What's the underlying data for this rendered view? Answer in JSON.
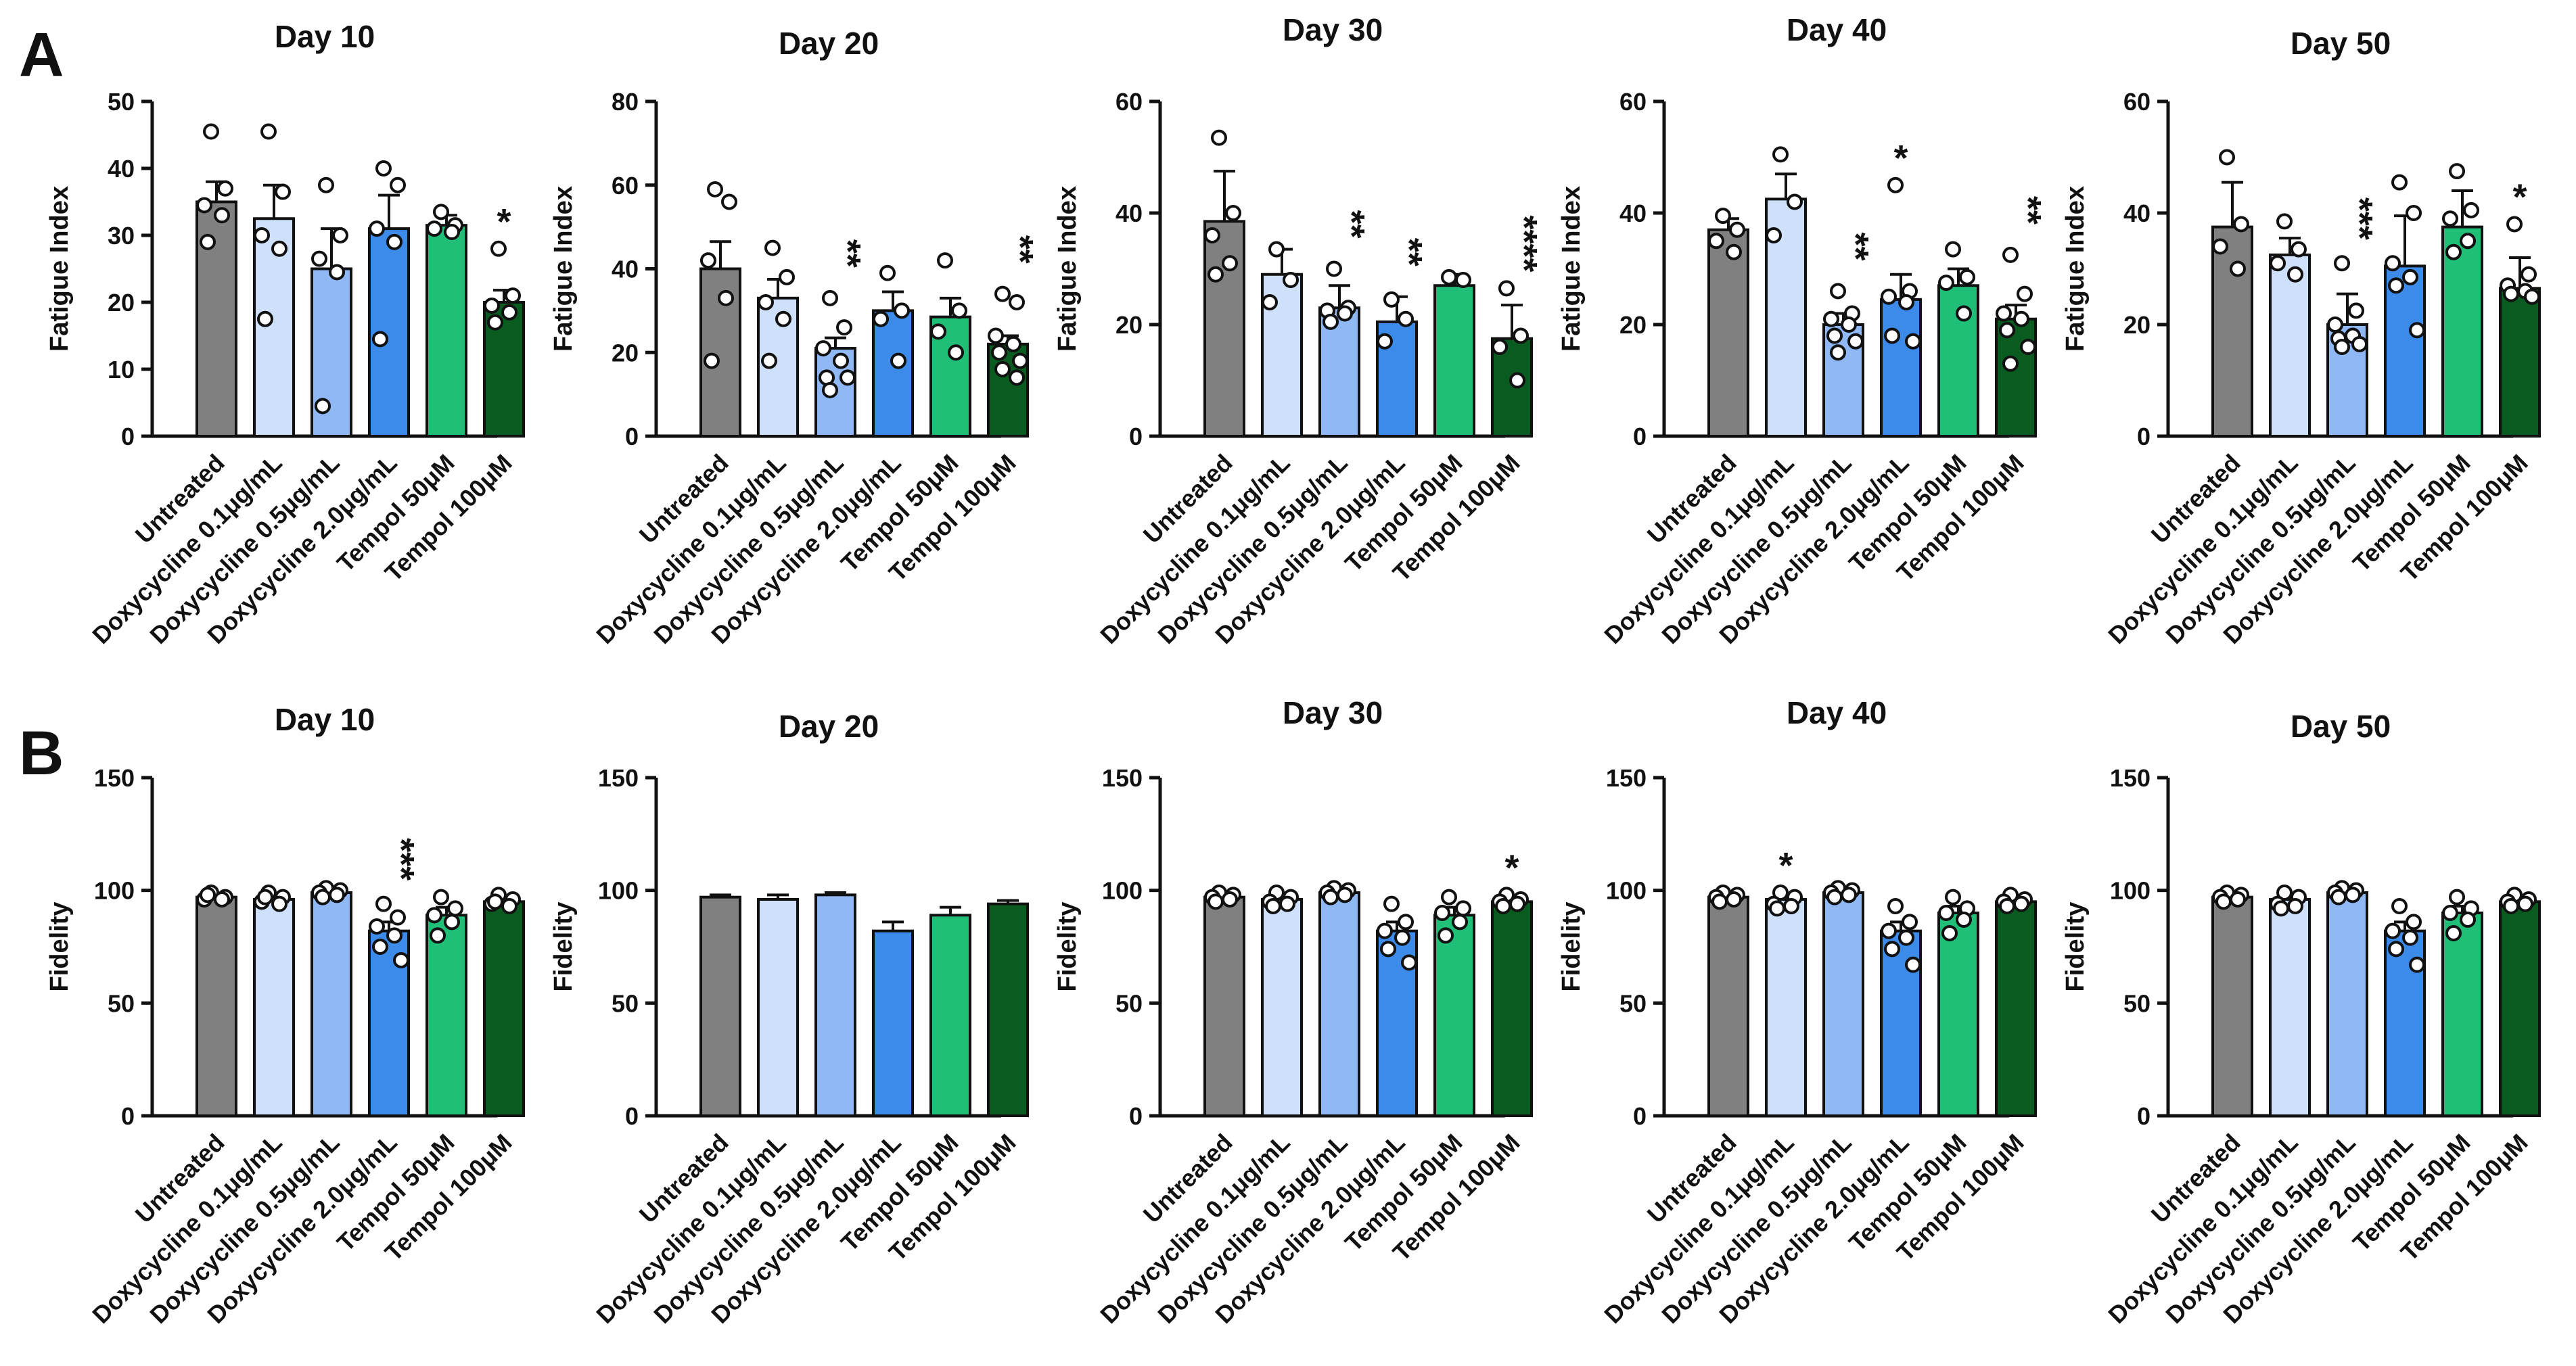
{
  "panels": [
    {
      "label": "A",
      "charts": [
        {
          "title": "Day 10",
          "ylabel": "Fatigue Index",
          "yticks": [
            "0",
            "10",
            "20",
            "30",
            "40",
            "50"
          ],
          "ylim": [
            0,
            50
          ],
          "values": [
            35,
            32.5,
            25,
            31,
            31.5,
            20
          ],
          "errors": [
            3,
            5,
            6,
            5,
            1.5,
            1.8
          ],
          "points": [
            [
              45.5,
              37,
              34.5,
              33,
              29
            ],
            [
              45.5,
              36.5,
              30,
              28,
              17.5
            ],
            [
              37.5,
              30,
              26.5,
              24.5,
              4.5
            ],
            [
              40,
              37.5,
              31,
              29,
              14.5
            ],
            [
              33.5,
              31.5,
              31,
              30.5
            ],
            [
              28,
              21,
              19.5,
              18.5,
              17
            ]
          ],
          "sig": [
            "",
            "",
            "",
            "",
            "",
            "*"
          ]
        },
        {
          "title": "Day 20",
          "ylabel": "Fatigue Index",
          "yticks": [
            "0",
            "20",
            "40",
            "60",
            "80"
          ],
          "ylim": [
            0,
            80
          ],
          "values": [
            40,
            33,
            21,
            30,
            28.5,
            22
          ],
          "errors": [
            6.5,
            4.5,
            2.5,
            4.5,
            4.5,
            2
          ],
          "points": [
            [
              59,
              56,
              42,
              33,
              18
            ],
            [
              45,
              38,
              32,
              28,
              18
            ],
            [
              33,
              26,
              21,
              18,
              14,
              14,
              11
            ],
            [
              39,
              30,
              28,
              18
            ],
            [
              42,
              30,
              25,
              20
            ],
            [
              34,
              32,
              24,
              22,
              20,
              18,
              16,
              14
            ]
          ],
          "sig": [
            "",
            "",
            "**",
            "",
            "",
            "**"
          ]
        },
        {
          "title": "Day 30",
          "ylabel": "Fatigue Index",
          "yticks": [
            "0",
            "20",
            "40",
            "60"
          ],
          "ylim": [
            0,
            60
          ],
          "values": [
            38.5,
            29,
            23,
            20.5,
            27,
            17.5
          ],
          "errors": [
            9,
            4.5,
            4,
            4.5,
            2,
            6
          ],
          "points": [
            [
              53.5,
              40,
              36,
              31,
              29
            ],
            [
              33.5,
              28,
              24
            ],
            [
              30,
              23,
              22.5,
              22,
              20.5
            ],
            [
              24.5,
              21,
              17
            ],
            [
              28.5,
              28
            ],
            [
              26.5,
              18,
              16,
              10
            ]
          ],
          "sig": [
            "",
            "",
            "**",
            "**",
            "",
            "****"
          ]
        },
        {
          "title": "Day 40",
          "ylabel": "Fatigue Index",
          "yticks": [
            "0",
            "20",
            "40",
            "60"
          ],
          "ylim": [
            0,
            60
          ],
          "values": [
            37,
            42.5,
            20,
            24.5,
            27,
            21
          ],
          "errors": [
            2,
            4.5,
            2,
            4.5,
            3,
            2.5
          ],
          "points": [
            [
              39.5,
              37,
              35,
              33
            ],
            [
              50.5,
              42,
              36
            ],
            [
              26,
              22,
              21,
              20,
              18,
              17,
              15
            ],
            [
              45,
              26,
              25,
              24,
              18,
              17
            ],
            [
              33.5,
              28.5,
              27.5,
              22
            ],
            [
              32.5,
              25.5,
              22,
              21,
              19,
              16,
              13
            ]
          ],
          "sig": [
            "",
            "",
            "**",
            "*",
            "",
            "**"
          ]
        },
        {
          "title": "Day 50",
          "ylabel": "Fatigue Index",
          "yticks": [
            "0",
            "20",
            "40",
            "60"
          ],
          "ylim": [
            0,
            60
          ],
          "values": [
            37.5,
            32.5,
            20,
            30.5,
            37.5,
            26.5
          ],
          "errors": [
            8,
            3,
            5.5,
            9,
            6.5,
            5.5
          ],
          "points": [
            [
              50,
              38,
              34,
              30
            ],
            [
              38.5,
              33.5,
              31,
              29
            ],
            [
              31,
              22.5,
              20,
              18,
              17.5,
              16.5,
              16
            ],
            [
              45.5,
              40,
              31,
              28.5,
              27,
              19
            ],
            [
              47.5,
              40.5,
              39,
              35,
              33
            ],
            [
              38,
              29,
              27,
              26,
              25.5,
              25
            ]
          ],
          "sig": [
            "",
            "",
            "***",
            "",
            "",
            "*"
          ]
        }
      ]
    },
    {
      "label": "B",
      "charts": [
        {
          "title": "Day 10",
          "ylabel": "Fidelity",
          "yticks": [
            "0",
            "50",
            "100",
            "150"
          ],
          "ylim": [
            0,
            150
          ],
          "values": [
            97,
            96,
            99,
            82,
            89,
            95
          ],
          "errors": [
            1.5,
            2.5,
            1.5,
            4,
            3.5,
            1.5
          ],
          "points": [
            [
              99,
              97,
              96,
              96,
              98
            ],
            [
              99,
              97,
              95,
              94,
              97
            ],
            [
              101,
              100,
              99,
              98,
              97
            ],
            [
              94,
              88,
              84,
              80,
              75,
              69
            ],
            [
              97,
              92,
              89,
              86,
              80
            ],
            [
              98,
              96,
              94,
              93,
              95
            ]
          ],
          "sig": [
            "",
            "",
            "",
            "***",
            "",
            ""
          ]
        },
        {
          "title": "Day 20",
          "ylabel": "Fidelity",
          "yticks": [
            "0",
            "50",
            "100",
            "150"
          ],
          "ylim": [
            0,
            150
          ],
          "values": [
            97,
            96,
            98,
            82,
            89,
            94
          ],
          "errors": [
            1,
            2,
            1,
            4,
            3.5,
            1.5
          ],
          "points": [
            [],
            [],
            [],
            [],
            [],
            []
          ],
          "sig": [
            "",
            "",
            "",
            "",
            "",
            ""
          ]
        },
        {
          "title": "Day 30",
          "ylabel": "Fidelity",
          "yticks": [
            "0",
            "50",
            "100",
            "150"
          ],
          "ylim": [
            0,
            150
          ],
          "values": [
            97,
            96,
            99,
            82,
            89,
            95
          ],
          "errors": [
            1.5,
            2.5,
            1.5,
            4,
            3.5,
            1.5
          ],
          "points": [
            [
              99,
              98,
              97,
              96,
              95
            ],
            [
              99,
              97,
              95,
              94,
              93
            ],
            [
              101,
              100,
              99,
              98,
              97
            ],
            [
              94,
              86,
              82,
              79,
              74,
              68
            ],
            [
              97,
              92,
              90,
              86,
              80
            ],
            [
              98,
              96,
              95,
              94,
              93
            ]
          ],
          "sig": [
            "",
            "",
            "",
            "",
            "",
            "*"
          ]
        },
        {
          "title": "Day 40",
          "ylabel": "Fidelity",
          "yticks": [
            "0",
            "50",
            "100",
            "150"
          ],
          "ylim": [
            0,
            150
          ],
          "values": [
            97,
            96,
            99,
            82,
            90,
            95
          ],
          "errors": [
            1.5,
            2.5,
            1.5,
            4,
            3,
            1.5
          ],
          "points": [
            [
              99,
              98,
              97,
              96,
              95
            ],
            [
              99,
              97,
              94,
              93,
              92
            ],
            [
              101,
              100,
              99,
              98,
              97
            ],
            [
              93,
              86,
              82,
              79,
              74,
              67
            ],
            [
              97,
              92,
              90,
              87,
              81
            ],
            [
              98,
              96,
              95,
              94,
              93
            ]
          ],
          "sig": [
            "",
            "*",
            "",
            "",
            "",
            ""
          ]
        },
        {
          "title": "Day 50",
          "ylabel": "Fidelity",
          "yticks": [
            "0",
            "50",
            "100",
            "150"
          ],
          "ylim": [
            0,
            150
          ],
          "values": [
            97,
            96,
            99,
            82,
            90,
            95
          ],
          "errors": [
            1.5,
            2.5,
            1.5,
            4,
            3,
            1.5
          ],
          "points": [
            [
              99,
              98,
              97,
              96,
              95
            ],
            [
              99,
              97,
              94,
              93,
              92
            ],
            [
              101,
              100,
              99,
              98,
              97
            ],
            [
              93,
              86,
              82,
              79,
              74,
              67
            ],
            [
              97,
              92,
              90,
              87,
              81
            ],
            [
              98,
              96,
              95,
              94,
              93
            ]
          ],
          "sig": [
            "",
            "",
            "",
            "",
            "",
            ""
          ]
        }
      ]
    }
  ],
  "chart_data": {
    "type": "bar",
    "categories": [
      "Untreated",
      "Doxycycline 0.1μg/mL",
      "Doxycycline 0.5μg/mL",
      "Doxycycline 2.0μg/mL",
      "Tempol 50μM",
      "Tempol 100μM"
    ],
    "colors": [
      "#808080",
      "#cfe0fb",
      "#8fb8f5",
      "#3d8be8",
      "#1fbf78",
      "#0a5b20"
    ],
    "series_note": "Panel A: Fatigue Index per day; Panel B: Fidelity per day; bars are means with SEM error bars, circles are individual measurements"
  }
}
